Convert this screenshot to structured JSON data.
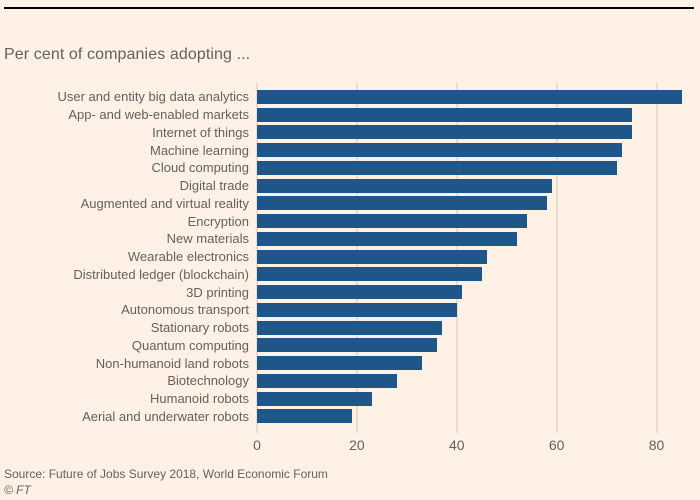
{
  "chart": {
    "title": "Per cent of companies adopting ...",
    "source": "Source: Future of Jobs Survey 2018, World Economic Forum",
    "credit": "© FT",
    "colors": {
      "background": "#FFF1E5",
      "bar": "#1F5689",
      "gridline": "#EADCCD",
      "text": "#66605C",
      "top_rule": "#000000"
    }
  },
  "chart_data": {
    "type": "bar",
    "orientation": "horizontal",
    "title": "Per cent of companies adopting ...",
    "categories": [
      "User and entity big data analytics",
      "App- and web-enabled markets",
      "Internet of things",
      "Machine learning",
      "Cloud computing",
      "Digital trade",
      "Augmented and virtual reality",
      "Encryption",
      "New materials",
      "Wearable electronics",
      "Distributed ledger (blockchain)",
      "3D printing",
      "Autonomous transport",
      "Stationary robots",
      "Quantum computing",
      "Non-humanoid land robots",
      "Biotechnology",
      "Humanoid robots",
      "Aerial and underwater robots"
    ],
    "values": [
      85,
      75,
      75,
      73,
      72,
      59,
      58,
      54,
      52,
      46,
      45,
      41,
      40,
      37,
      36,
      33,
      28,
      23,
      19
    ],
    "xlabel": "",
    "ylabel": "",
    "xlim": [
      0,
      87.5
    ],
    "xticks": [
      0,
      20,
      40,
      60,
      80
    ],
    "grid": true,
    "legend": false,
    "source": "Source: Future of Jobs Survey 2018, World Economic Forum"
  }
}
